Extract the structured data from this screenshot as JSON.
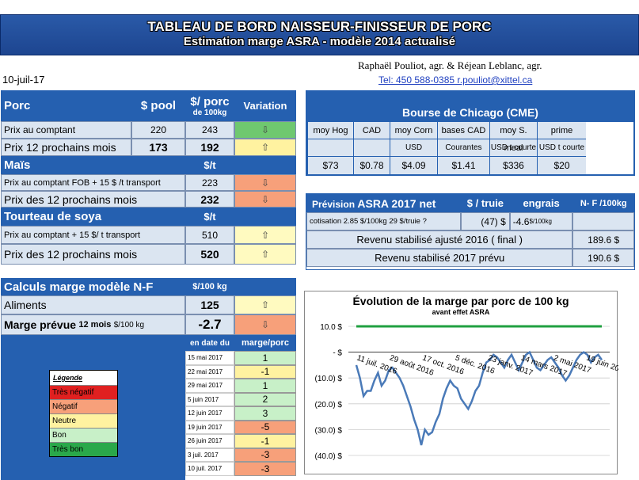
{
  "banner": {
    "line1": "TABLEAU DE BORD NAISSEUR-FINISSEUR DE PORC",
    "line2": "Estimation marge ASRA - modèle 2014 actualisé"
  },
  "authors": {
    "names": "Raphaël Pouliot, agr.   &   Réjean Leblanc, agr.",
    "tel": "Tel:     450 588-0385   r.pouliot@xittel.ca"
  },
  "date": "10-juil-17",
  "porc": {
    "title": "Porc",
    "col_pool": "$ pool",
    "col_porc": "$/ porc",
    "col_porc_sub": "de 100kg",
    "col_var": "Variation",
    "rows": [
      {
        "label": "Prix au comptant",
        "pool": "220",
        "porc": "243",
        "arrow": "⇩",
        "color": "green"
      },
      {
        "label": "Prix 12 prochains mois",
        "pool": "173",
        "porc": "192",
        "arrow": "⇧",
        "color": "yellow"
      }
    ]
  },
  "mais": {
    "title": "Maïs",
    "unit": "$/t",
    "rows": [
      {
        "label": "Prix au comptant  FOB + 15 $ /t transport",
        "value": "223",
        "arrow": "⇩",
        "color": "orange"
      },
      {
        "label": "Prix des 12 prochains mois",
        "value": "232",
        "arrow": "⇩",
        "color": "orange"
      }
    ]
  },
  "soya": {
    "title": "Tourteau de soya",
    "unit": "$/t",
    "rows": [
      {
        "label": "Prix au comptant  + 15 $/ t  transport",
        "value": "510",
        "arrow": "⇧",
        "color": "lyellow"
      },
      {
        "label": "Prix des 12 prochains mois",
        "value": "520",
        "arrow": "⇧",
        "color": "lyellow"
      }
    ]
  },
  "calc": {
    "title": "Calculs marge  modèle N-F",
    "unit": "$/100 kg",
    "aliments_label": "Aliments",
    "aliments_value": "125",
    "aliments_arrow": "⇧",
    "marge_label": "Marge prévue",
    "marge_sub": "12 mois",
    "marge_unit": "$/100 kg",
    "marge_value": "-2.7",
    "marge_arrow": "⇩"
  },
  "history": {
    "col_date": "en date du",
    "col_marge": "marge/porc",
    "rows": [
      {
        "date": "15 mai 2017",
        "value": "1",
        "color": "bon"
      },
      {
        "date": "22 mai 2017",
        "value": "-1",
        "color": "neutre"
      },
      {
        "date": "29 mai 2017",
        "value": "1",
        "color": "bon"
      },
      {
        "date": "5 juin 2017",
        "value": "2",
        "color": "bon"
      },
      {
        "date": "12 juin 2017",
        "value": "3",
        "color": "bon"
      },
      {
        "date": "19 juin 2017",
        "value": "-5",
        "color": "negatif"
      },
      {
        "date": "26 juin 2017",
        "value": "-1",
        "color": "neutre"
      },
      {
        "date": "3 juil. 2017",
        "value": "-3",
        "color": "negatif"
      },
      {
        "date": "10 juil. 2017",
        "value": "-3",
        "color": "negatif"
      }
    ]
  },
  "legend": {
    "title": "Légende",
    "items": [
      {
        "label": "Très négatif",
        "color": "#e02020"
      },
      {
        "label": "Négatif",
        "color": "#f7a07a"
      },
      {
        "label": "Neutre",
        "color": "#fff2a0"
      },
      {
        "label": "Bon",
        "color": "#c8f0c8"
      },
      {
        "label": "Très bon",
        "color": "#2aa84a"
      }
    ]
  },
  "cme": {
    "title": "Bourse de Chicago (CME)",
    "cols": [
      {
        "h": "moy Hog",
        "u": "",
        "v": "$73"
      },
      {
        "h": "CAD",
        "u": "",
        "v": "$0.78"
      },
      {
        "h": "moy Corn",
        "u": "USD",
        "v": "$4.09"
      },
      {
        "h": "bases CAD",
        "u": "Courantes",
        "v": "$1.41"
      },
      {
        "h": "moy S. meal",
        "u": "USD t courte",
        "v": "$336"
      },
      {
        "h": "prime",
        "u": "USD t courte",
        "v": "$20"
      }
    ]
  },
  "asra": {
    "title": "Prévision",
    "title_big": "ASRA 2017 net",
    "col_truie": "$ / truie",
    "col_engrais": "engrais",
    "col_nf": "N- F /100kg",
    "cotisation": "cotisation 2.85 $/100kg  29 $/truie ?",
    "truie_val": "(47) $",
    "engrais_val": "-4.6",
    "engrais_unit": "$/100kg",
    "rows": [
      {
        "label": "Revenu stabilisé ajusté 2016 ( final )",
        "value": "189.6 $"
      },
      {
        "label": "Revenu stabilisé 2017 prévu",
        "value": "190.6 $"
      }
    ]
  },
  "chart_data": {
    "type": "line",
    "title": "Évolution de la marge par porc de 100 kg",
    "subtitle": "avant effet ASRA",
    "yticks": [
      "10.0 $",
      "- $",
      "(10.0) $",
      "(20.0) $",
      "(30.0) $",
      "(40.0) $"
    ],
    "ylim": [
      -40,
      10
    ],
    "xlabels": [
      "11 juil. 2016",
      "29 août 2016",
      "17 oct. 2016",
      "5 déc. 2016",
      "23 janv. 2017",
      "14 mars 2017",
      "2 mai 2017",
      "19 juin 2017"
    ],
    "series": [
      {
        "name": "",
        "color": "#4a7ab8",
        "values": [
          -5,
          -10,
          -17,
          -15,
          -15,
          -11,
          -8,
          -13,
          -11,
          -7,
          -6,
          -8,
          -10,
          -13,
          -17,
          -21,
          -26,
          -30,
          -36,
          -30,
          -32,
          -31,
          -27,
          -24,
          -18,
          -14,
          -11,
          -13,
          -14,
          -18,
          -20,
          -22,
          -19,
          -15,
          -13,
          -8,
          -4,
          -3,
          -1,
          -2,
          -4,
          -6,
          -3,
          -1,
          -4,
          -7,
          -4,
          -1,
          0,
          -3,
          -6,
          -7,
          -5,
          -3,
          -2,
          -4,
          -6,
          -9,
          -11,
          -9,
          -6,
          -3,
          -1,
          0,
          -1,
          -4,
          -2,
          -1,
          -3
        ]
      },
      {
        "name": "",
        "color": "#20a040",
        "values": [
          10,
          10
        ]
      }
    ]
  }
}
